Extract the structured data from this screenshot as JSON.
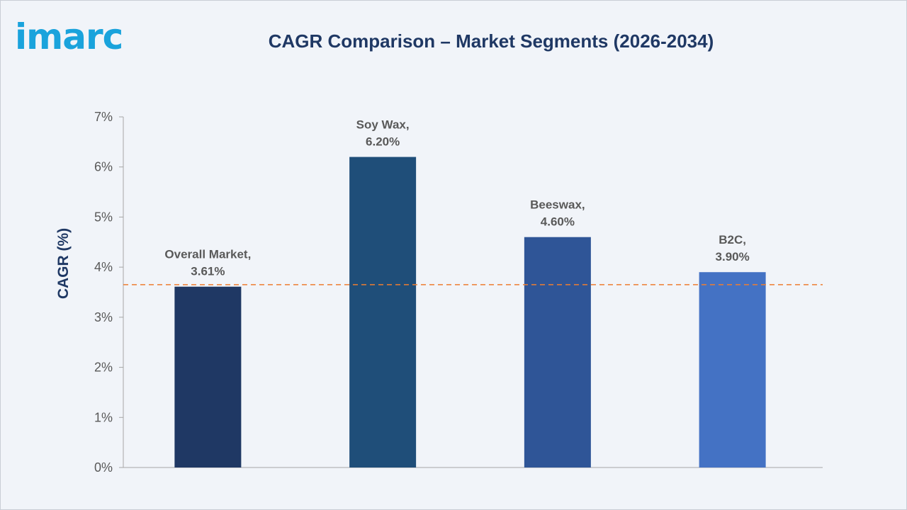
{
  "brand": {
    "logo_text": "imarc"
  },
  "chart_data": {
    "type": "bar",
    "title": "CAGR Comparison – Market Segments (2026-2034)",
    "ylabel": "CAGR (%)",
    "xlabel": "",
    "ylim": [
      0,
      7
    ],
    "y_ticks": [
      "0%",
      "1%",
      "2%",
      "3%",
      "4%",
      "5%",
      "6%",
      "7%"
    ],
    "categories": [
      "Overall Market",
      "Soy Wax",
      "Beeswax",
      "B2C"
    ],
    "values": [
      3.61,
      6.2,
      4.6,
      3.9
    ],
    "data_labels": [
      [
        "Overall Market,",
        "3.61%"
      ],
      [
        "Soy Wax,",
        "6.20%"
      ],
      [
        "Beeswax,",
        "4.60%"
      ],
      [
        "B2C,",
        "3.90%"
      ]
    ],
    "bar_colors": [
      "#1f3864",
      "#1f4e79",
      "#2f5597",
      "#4472c4"
    ],
    "reference_line": {
      "value": 3.65,
      "style": "dashed",
      "color": "#ed7d31"
    },
    "grid": false,
    "legend": "none"
  }
}
